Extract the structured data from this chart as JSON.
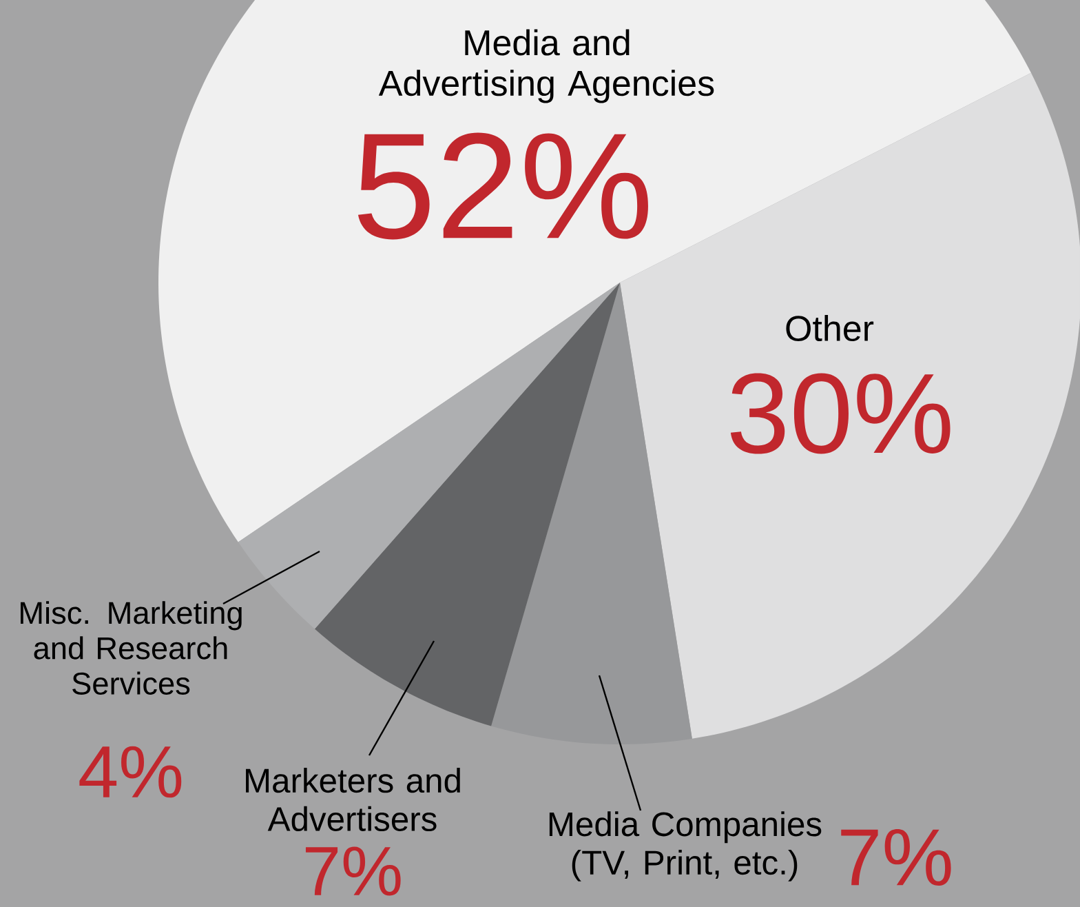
{
  "chart_data": {
    "type": "pie",
    "categories": [
      "Media and Advertising Agencies",
      "Other",
      "Media Companies (TV, Print, etc.)",
      "Marketers and Advertisers",
      "Misc. Marketing and Research Services"
    ],
    "values": [
      52,
      30,
      7,
      7,
      4
    ],
    "value_labels": [
      "52%",
      "30%",
      "7%",
      "7%",
      "4%"
    ],
    "colors": [
      "#f0f0f0",
      "#dfdfe0",
      "#97989a",
      "#636466",
      "#aeafb1"
    ]
  }
}
